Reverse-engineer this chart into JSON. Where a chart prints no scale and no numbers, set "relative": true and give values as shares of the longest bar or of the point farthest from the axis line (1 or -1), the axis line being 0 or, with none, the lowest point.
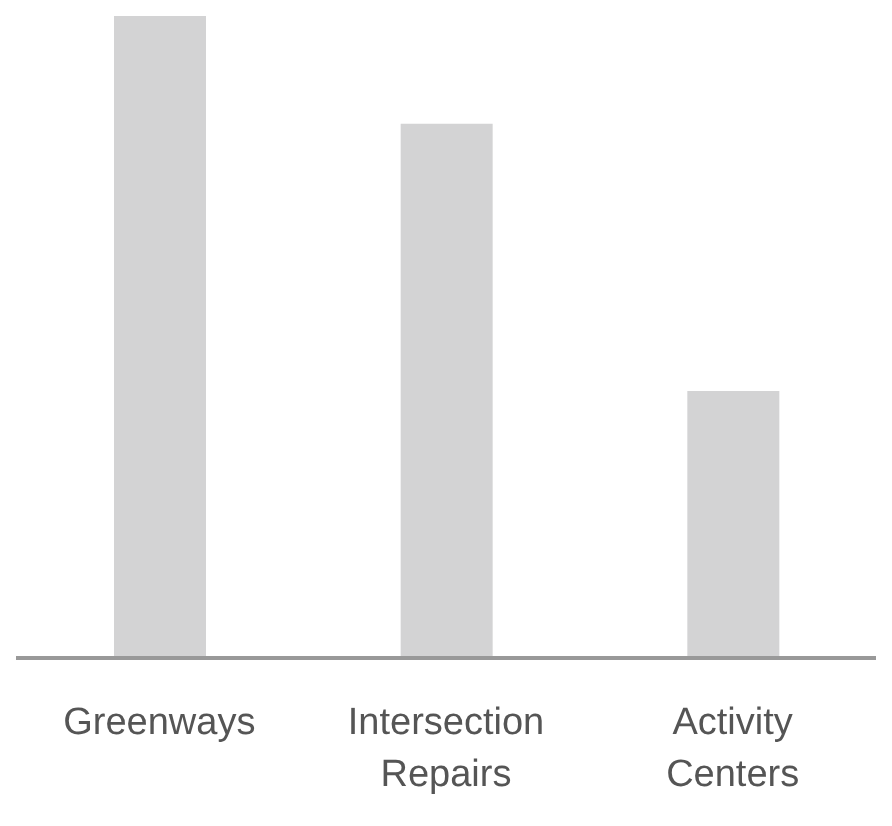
{
  "chart_data": {
    "type": "bar",
    "relative": true,
    "categories": [
      "Greenways",
      "Intersection Repairs",
      "Activity Centers"
    ],
    "values": [
      1,
      0.832,
      0.416
    ],
    "color": "#d3d3d4"
  }
}
